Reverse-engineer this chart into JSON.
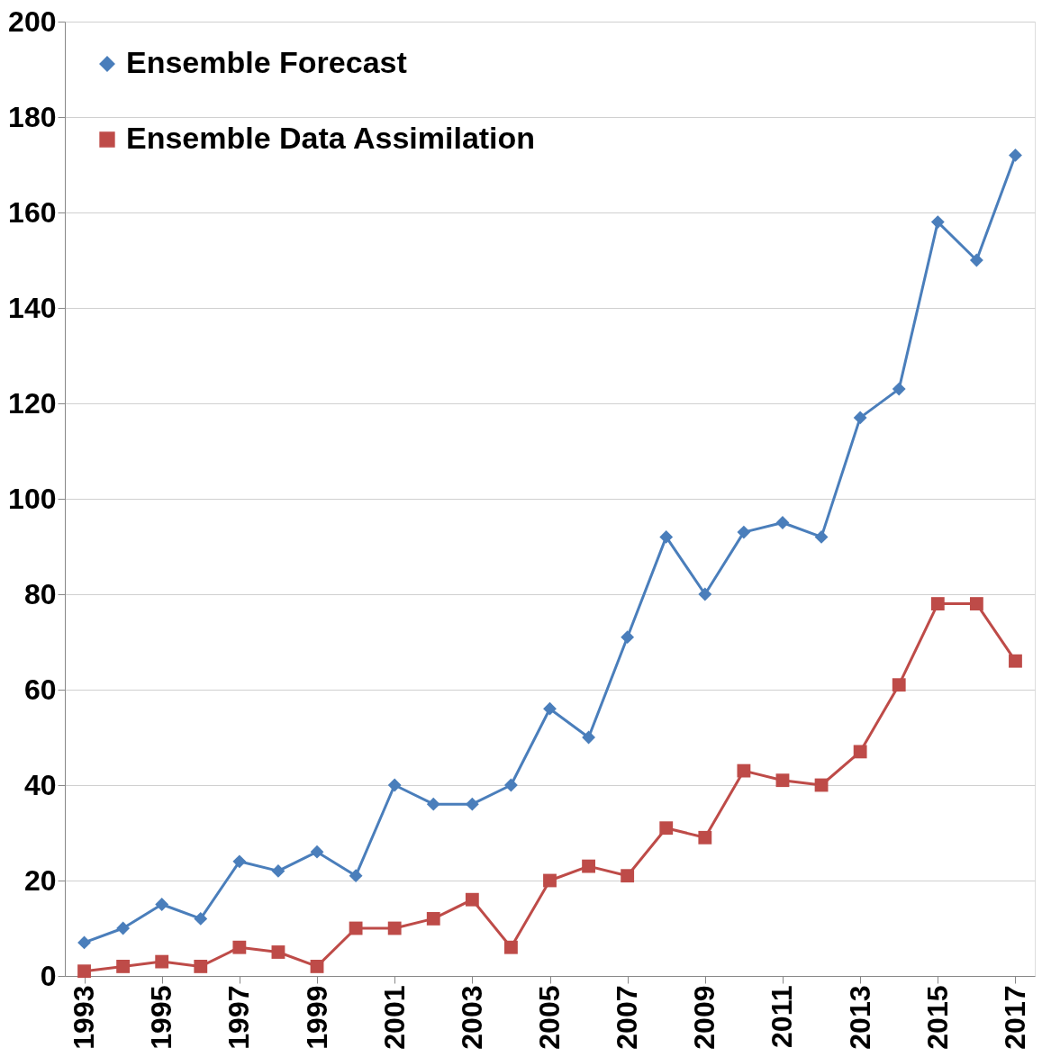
{
  "chart_data": {
    "type": "line",
    "x": [
      1993,
      1994,
      1995,
      1996,
      1997,
      1998,
      1999,
      2000,
      2001,
      2002,
      2003,
      2004,
      2005,
      2006,
      2007,
      2008,
      2009,
      2010,
      2011,
      2012,
      2013,
      2014,
      2015,
      2016,
      2017
    ],
    "series": [
      {
        "name": "Ensemble Forecast",
        "color": "#4a7ebb",
        "marker": "diamond",
        "values": [
          7,
          10,
          15,
          12,
          24,
          22,
          26,
          21,
          40,
          36,
          36,
          40,
          56,
          50,
          71,
          92,
          80,
          93,
          95,
          92,
          117,
          123,
          158,
          150,
          172
        ]
      },
      {
        "name": "Ensemble Data Assimilation",
        "color": "#be4b48",
        "marker": "square",
        "values": [
          1,
          2,
          3,
          2,
          6,
          5,
          2,
          10,
          10,
          12,
          16,
          6,
          20,
          23,
          21,
          31,
          29,
          43,
          41,
          40,
          47,
          61,
          78,
          78,
          66
        ]
      }
    ],
    "xlim": [
      1992.5,
      2017.5
    ],
    "xticks": [
      1993,
      1995,
      1997,
      1999,
      2001,
      2003,
      2005,
      2007,
      2009,
      2011,
      2013,
      2015,
      2017
    ],
    "ylim": [
      0,
      200
    ],
    "yticks": [
      0,
      20,
      40,
      60,
      80,
      100,
      120,
      140,
      160,
      180,
      200
    ],
    "grid": "y",
    "legend": "top left"
  }
}
